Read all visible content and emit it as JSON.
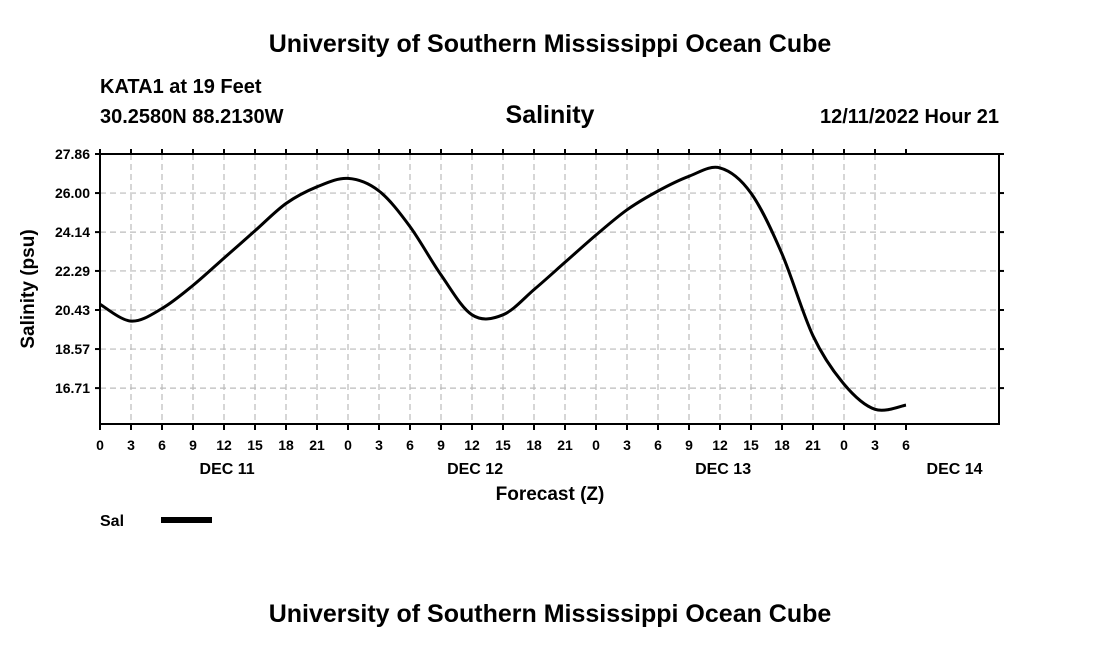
{
  "header": {
    "top_title": "University of Southern Mississippi Ocean Cube",
    "station": "KATA1 at 19 Feet",
    "coords": "30.2580N  88.2130W",
    "datetime": "12/11/2022 Hour 21",
    "bottom_title": "University of Southern Mississippi Ocean Cube"
  },
  "chart_data": {
    "type": "line",
    "title": "Salinity",
    "xlabel": "Forecast (Z)",
    "ylabel": "Salinity (psu)",
    "xlim": [
      0,
      87
    ],
    "ylim": [
      15.0,
      27.86
    ],
    "yticks": [
      "27.86",
      "26.00",
      "24.14",
      "22.29",
      "20.43",
      "18.57",
      "16.71"
    ],
    "xtick_labels": [
      "0",
      "3",
      "6",
      "9",
      "12",
      "15",
      "18",
      "21",
      "0",
      "3",
      "6",
      "9",
      "12",
      "15",
      "18",
      "21",
      "0",
      "3",
      "6",
      "9",
      "12",
      "15",
      "18",
      "21",
      "0",
      "3",
      "6"
    ],
    "day_labels": [
      {
        "text": "DEC 11",
        "hour": 12.3
      },
      {
        "text": "DEC 12",
        "hour": 36.3
      },
      {
        "text": "DEC 13",
        "hour": 60.3
      },
      {
        "text": "DEC 14",
        "hour": 82.7
      }
    ],
    "grid": true,
    "legend": [
      {
        "name": "Sal",
        "color": "#000000"
      }
    ],
    "series": [
      {
        "name": "Sal",
        "x": [
          0,
          3,
          6,
          9,
          12,
          15,
          18,
          21,
          24,
          27,
          30,
          33,
          36,
          39,
          42,
          45,
          48,
          51,
          54,
          57,
          60,
          63,
          66,
          69,
          72,
          75,
          78
        ],
        "values": [
          20.7,
          19.9,
          20.5,
          21.6,
          22.9,
          24.2,
          25.5,
          26.3,
          26.7,
          26.1,
          24.4,
          22.1,
          20.2,
          20.2,
          21.4,
          22.7,
          24.0,
          25.2,
          26.1,
          26.8,
          27.2,
          26.0,
          23.1,
          19.2,
          16.9,
          15.7,
          15.9
        ]
      }
    ]
  }
}
